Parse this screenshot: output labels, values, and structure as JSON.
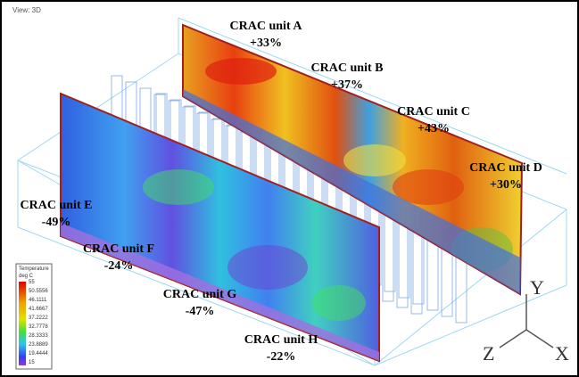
{
  "view_label": "View: 3D",
  "units": [
    {
      "name": "CRAC unit A",
      "change": "+33%"
    },
    {
      "name": "CRAC unit B",
      "change": "+37%"
    },
    {
      "name": "CRAC unit C",
      "change": "+43%"
    },
    {
      "name": "CRAC unit D",
      "change": "+30%"
    },
    {
      "name": "CRAC unit E",
      "change": "-49%"
    },
    {
      "name": "CRAC unit F",
      "change": "-24%"
    },
    {
      "name": "CRAC unit G",
      "change": "-47%"
    },
    {
      "name": "CRAC unit H",
      "change": "-22%"
    }
  ],
  "legend": {
    "title": "Temperature",
    "unit": "deg C",
    "values": [
      "55",
      "50.5556",
      "46.1111",
      "41.6667",
      "37.2222",
      "32.7778",
      "28.3333",
      "23.8889",
      "19.4444",
      "15"
    ]
  },
  "axes": {
    "y": "Y",
    "z": "Z",
    "x": "X"
  }
}
